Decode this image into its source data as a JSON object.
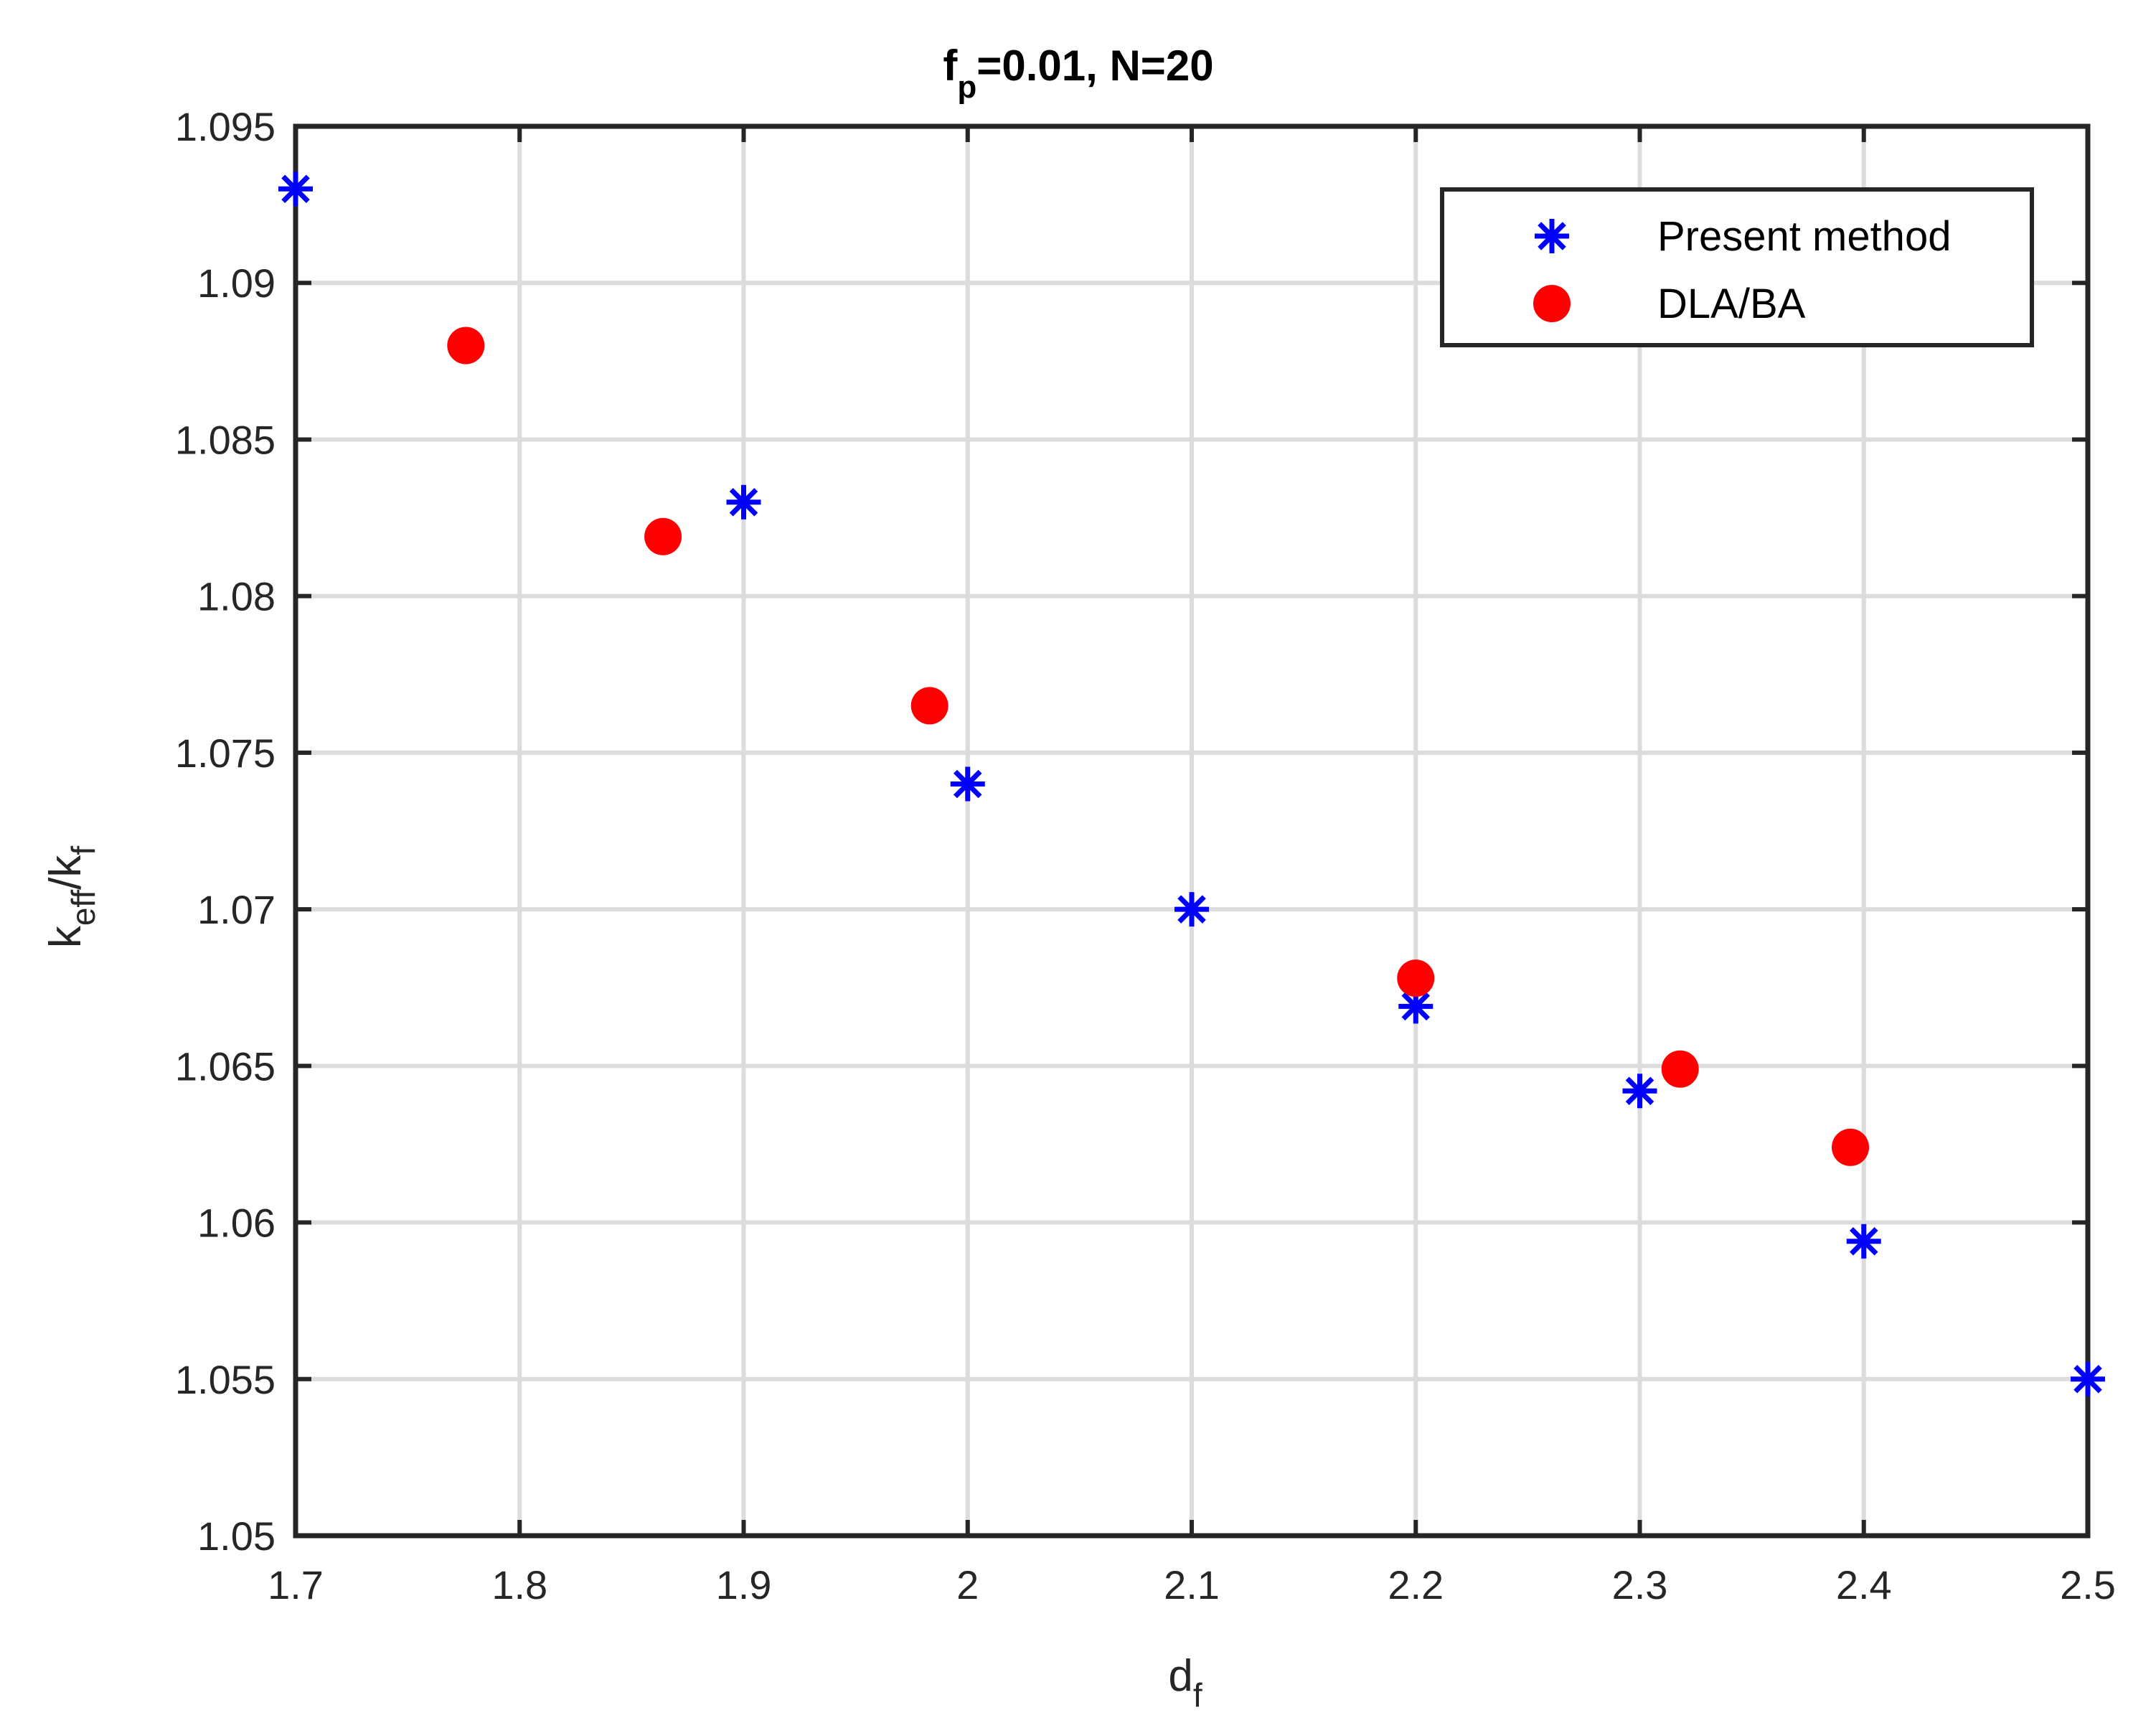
{
  "chart_data": {
    "type": "scatter",
    "title": {
      "main": "f",
      "sub": "p",
      "rest": "=0.01, N=20"
    },
    "xlabel": {
      "main": "d",
      "sub": "f"
    },
    "ylabel": {
      "part1": "k",
      "sub1": "eff",
      "part2": "/k",
      "sub2": "f"
    },
    "xlim": [
      1.7,
      2.5
    ],
    "ylim": [
      1.05,
      1.095
    ],
    "x_ticks": [
      1.7,
      1.8,
      1.9,
      2.0,
      2.1,
      2.2,
      2.3,
      2.4,
      2.5
    ],
    "x_tick_labels": [
      "1.7",
      "1.8",
      "1.9",
      "2",
      "2.1",
      "2.2",
      "2.3",
      "2.4",
      "2.5"
    ],
    "y_ticks": [
      1.05,
      1.055,
      1.06,
      1.065,
      1.07,
      1.075,
      1.08,
      1.085,
      1.09,
      1.095
    ],
    "y_tick_labels": [
      "1.05",
      "1.055",
      "1.06",
      "1.065",
      "1.07",
      "1.075",
      "1.08",
      "1.085",
      "1.09",
      "1.095"
    ],
    "grid": true,
    "legend_position": "top-right",
    "series": [
      {
        "name": "Present method",
        "marker": "asterisk",
        "color": "#0000ff",
        "points": [
          {
            "x": 1.7,
            "y": 1.093
          },
          {
            "x": 1.9,
            "y": 1.083
          },
          {
            "x": 2.0,
            "y": 1.074
          },
          {
            "x": 2.1,
            "y": 1.07
          },
          {
            "x": 2.2,
            "y": 1.0669
          },
          {
            "x": 2.3,
            "y": 1.0642
          },
          {
            "x": 2.4,
            "y": 1.0594
          },
          {
            "x": 2.5,
            "y": 1.055
          }
        ]
      },
      {
        "name": "DLA/BA",
        "marker": "filled-circle",
        "color": "#ff0000",
        "points": [
          {
            "x": 1.776,
            "y": 1.088
          },
          {
            "x": 1.864,
            "y": 1.0819
          },
          {
            "x": 1.983,
            "y": 1.0765
          },
          {
            "x": 2.2,
            "y": 1.0678
          },
          {
            "x": 2.318,
            "y": 1.0649
          },
          {
            "x": 2.394,
            "y": 1.0624
          }
        ]
      }
    ]
  }
}
